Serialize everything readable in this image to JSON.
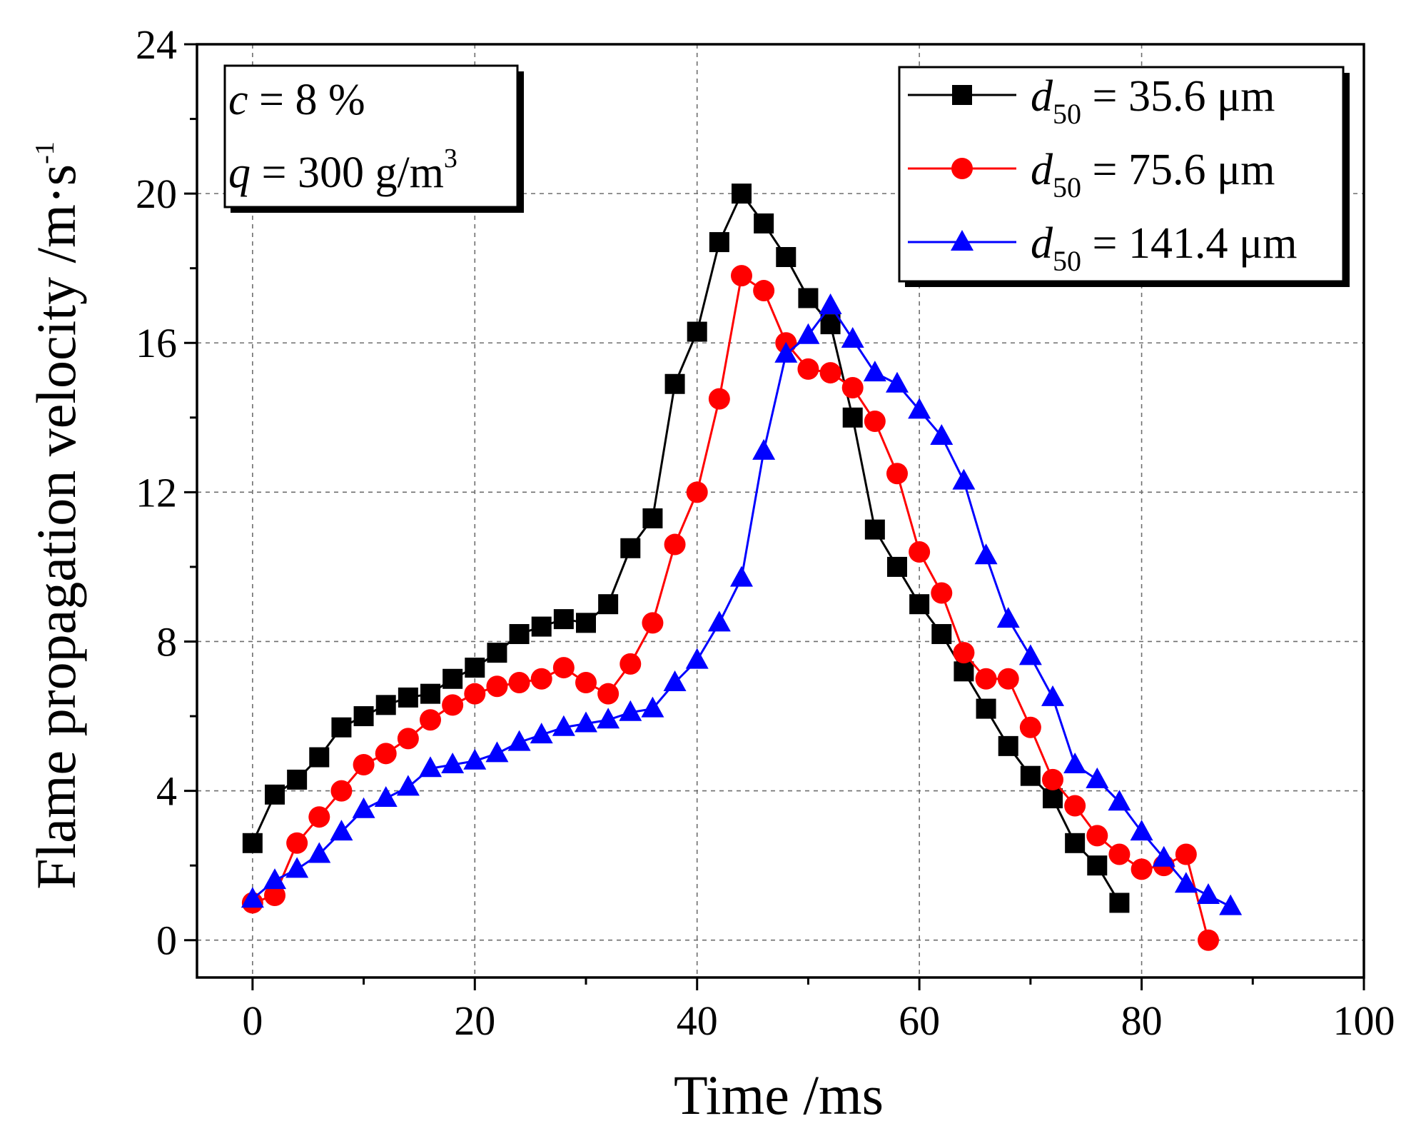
{
  "chart_data": {
    "type": "line",
    "xlabel": "Time /ms",
    "ylabel": "Flame propagation velocity /m·s",
    "ylabel_sup": "-1",
    "xlim": [
      -5,
      100
    ],
    "ylim": [
      -1,
      24
    ],
    "xticks": [
      0,
      20,
      40,
      60,
      80,
      100
    ],
    "yticks": [
      0,
      4,
      8,
      12,
      16,
      20,
      24
    ],
    "xtick_labels": [
      "0",
      "20",
      "40",
      "60",
      "80",
      "100"
    ],
    "ytick_labels": [
      "0",
      "4",
      "8",
      "12",
      "16",
      "20",
      "24"
    ],
    "grid": true,
    "legend_position": "top-right",
    "annotation": {
      "line1_var": "c",
      "line1_rest": " = 8 %",
      "line2_var": "q",
      "line2_rest": " = 300 g/m",
      "line2_sup": "3"
    },
    "series": [
      {
        "name": "d50 = 35.6 μm",
        "legend_var": "d",
        "legend_sub": "50",
        "legend_rest": " = 35.6 μm",
        "color": "#000000",
        "marker": "square",
        "x": [
          0,
          2,
          4,
          6,
          8,
          10,
          12,
          14,
          16,
          18,
          20,
          22,
          24,
          26,
          28,
          30,
          32,
          34,
          36,
          38,
          40,
          42,
          44,
          46,
          48,
          50,
          52,
          54,
          56,
          58,
          60,
          62,
          64,
          66,
          68,
          70,
          72,
          74,
          76,
          78
        ],
        "y": [
          2.6,
          3.9,
          4.3,
          4.9,
          5.7,
          6.0,
          6.3,
          6.5,
          6.6,
          7.0,
          7.3,
          7.7,
          8.2,
          8.4,
          8.6,
          8.5,
          9.0,
          10.5,
          11.3,
          14.9,
          16.3,
          18.7,
          20.0,
          19.2,
          18.3,
          17.2,
          16.5,
          14.0,
          11.0,
          10.0,
          9.0,
          8.2,
          7.2,
          6.2,
          5.2,
          4.4,
          3.8,
          2.6,
          2.0,
          1.0
        ]
      },
      {
        "name": "d50 = 75.6 μm",
        "legend_var": "d",
        "legend_sub": "50",
        "legend_rest": " = 75.6 μm",
        "color": "#ff0000",
        "marker": "circle",
        "x": [
          0,
          2,
          4,
          6,
          8,
          10,
          12,
          14,
          16,
          18,
          20,
          22,
          24,
          26,
          28,
          30,
          32,
          34,
          36,
          38,
          40,
          42,
          44,
          46,
          48,
          50,
          52,
          54,
          56,
          58,
          60,
          62,
          64,
          66,
          68,
          70,
          72,
          74,
          76,
          78,
          80,
          82,
          84,
          86
        ],
        "y": [
          1.0,
          1.2,
          2.6,
          3.3,
          4.0,
          4.7,
          5.0,
          5.4,
          5.9,
          6.3,
          6.6,
          6.8,
          6.9,
          7.0,
          7.3,
          6.9,
          6.6,
          7.4,
          8.5,
          10.6,
          12.0,
          14.5,
          17.8,
          17.4,
          16.0,
          15.3,
          15.2,
          14.8,
          13.9,
          12.5,
          10.4,
          9.3,
          7.7,
          7.0,
          7.0,
          5.7,
          4.3,
          3.6,
          2.8,
          2.3,
          1.9,
          2.0,
          2.3,
          0.0
        ]
      },
      {
        "name": "d50 = 141.4 μm",
        "legend_var": "d",
        "legend_sub": "50",
        "legend_rest": " = 141.4 μm",
        "color": "#0000ff",
        "marker": "triangle",
        "x": [
          0,
          2,
          4,
          6,
          8,
          10,
          12,
          14,
          16,
          18,
          20,
          22,
          24,
          26,
          28,
          30,
          32,
          34,
          36,
          38,
          40,
          42,
          44,
          46,
          48,
          50,
          52,
          54,
          56,
          58,
          60,
          62,
          64,
          66,
          68,
          70,
          72,
          74,
          76,
          78,
          80,
          82,
          84,
          86,
          88
        ],
        "y": [
          1.1,
          1.6,
          1.9,
          2.3,
          2.9,
          3.5,
          3.8,
          4.1,
          4.6,
          4.7,
          4.8,
          5.0,
          5.3,
          5.5,
          5.7,
          5.8,
          5.9,
          6.1,
          6.2,
          6.9,
          7.5,
          8.5,
          9.7,
          13.1,
          15.7,
          16.2,
          17.0,
          16.1,
          15.2,
          14.9,
          14.2,
          13.5,
          12.3,
          10.3,
          8.6,
          7.6,
          6.5,
          4.7,
          4.3,
          3.7,
          2.9,
          2.2,
          1.5,
          1.2,
          0.9
        ]
      }
    ]
  }
}
